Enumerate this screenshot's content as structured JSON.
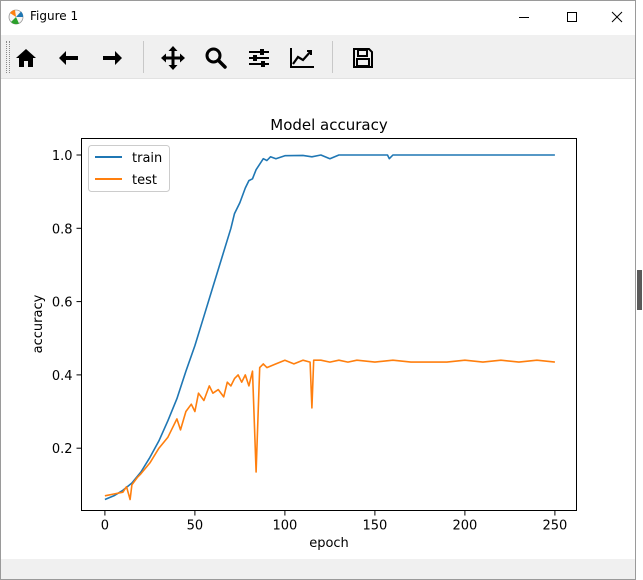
{
  "window": {
    "title": "Figure 1",
    "icons": {
      "app": "matplotlib-logo-icon",
      "minimize": "minimize-icon",
      "maximize": "maximize-icon",
      "close": "close-icon"
    }
  },
  "toolbar": {
    "buttons": [
      {
        "name": "home-button",
        "icon": "home-icon",
        "tooltip": "Reset original view"
      },
      {
        "name": "back-button",
        "icon": "arrow-left-icon",
        "tooltip": "Back to previous view"
      },
      {
        "name": "forward-button",
        "icon": "arrow-right-icon",
        "tooltip": "Forward to next view"
      },
      {
        "name": "pan-button",
        "icon": "move-icon",
        "tooltip": "Pan axes"
      },
      {
        "name": "zoom-button",
        "icon": "search-icon",
        "tooltip": "Zoom to rectangle"
      },
      {
        "name": "configure-subplots-button",
        "icon": "sliders-icon",
        "tooltip": "Configure subplots"
      },
      {
        "name": "edit-axis-button",
        "icon": "line-chart-icon",
        "tooltip": "Edit axis"
      },
      {
        "name": "save-button",
        "icon": "floppy-disk-icon",
        "tooltip": "Save the figure"
      }
    ]
  },
  "colors": {
    "train": "#1f77b4",
    "test": "#ff7f0e",
    "toolbar_bg": "#f0f0f0"
  },
  "chart_data": {
    "type": "line",
    "title": "Model accuracy",
    "xlabel": "epoch",
    "ylabel": "accuracy",
    "xlim": [
      -13,
      262
    ],
    "ylim": [
      0.03,
      1.045
    ],
    "xticks": [
      0,
      50,
      100,
      150,
      200,
      250
    ],
    "yticks": [
      0.2,
      0.4,
      0.6,
      0.8,
      1.0
    ],
    "xtick_labels": [
      "0",
      "50",
      "100",
      "150",
      "200",
      "250"
    ],
    "ytick_labels": [
      "0.2",
      "0.4",
      "0.6",
      "0.8",
      "1.0"
    ],
    "grid": false,
    "legend_position": "upper-left",
    "series": [
      {
        "name": "train",
        "color": "#1f77b4",
        "points": [
          [
            0,
            0.06
          ],
          [
            5,
            0.07
          ],
          [
            10,
            0.085
          ],
          [
            15,
            0.105
          ],
          [
            20,
            0.135
          ],
          [
            25,
            0.175
          ],
          [
            30,
            0.22
          ],
          [
            35,
            0.275
          ],
          [
            40,
            0.335
          ],
          [
            45,
            0.41
          ],
          [
            50,
            0.48
          ],
          [
            55,
            0.56
          ],
          [
            60,
            0.64
          ],
          [
            65,
            0.72
          ],
          [
            70,
            0.8
          ],
          [
            72,
            0.84
          ],
          [
            75,
            0.87
          ],
          [
            78,
            0.91
          ],
          [
            80,
            0.93
          ],
          [
            82,
            0.935
          ],
          [
            84,
            0.96
          ],
          [
            86,
            0.975
          ],
          [
            88,
            0.99
          ],
          [
            90,
            0.985
          ],
          [
            92,
            0.995
          ],
          [
            95,
            0.99
          ],
          [
            100,
            0.998
          ],
          [
            110,
            0.999
          ],
          [
            115,
            0.995
          ],
          [
            120,
            1.0
          ],
          [
            125,
            0.99
          ],
          [
            130,
            1.0
          ],
          [
            140,
            1.0
          ],
          [
            150,
            1.0
          ],
          [
            157,
            1.0
          ],
          [
            158,
            0.99
          ],
          [
            160,
            1.0
          ],
          [
            200,
            1.0
          ],
          [
            250,
            1.0
          ]
        ]
      },
      {
        "name": "test",
        "color": "#ff7f0e",
        "points": [
          [
            0,
            0.07
          ],
          [
            5,
            0.075
          ],
          [
            10,
            0.08
          ],
          [
            12,
            0.095
          ],
          [
            14,
            0.06
          ],
          [
            15,
            0.1
          ],
          [
            18,
            0.12
          ],
          [
            20,
            0.13
          ],
          [
            25,
            0.16
          ],
          [
            30,
            0.2
          ],
          [
            35,
            0.23
          ],
          [
            38,
            0.26
          ],
          [
            40,
            0.28
          ],
          [
            42,
            0.25
          ],
          [
            45,
            0.3
          ],
          [
            48,
            0.32
          ],
          [
            50,
            0.3
          ],
          [
            52,
            0.35
          ],
          [
            55,
            0.33
          ],
          [
            58,
            0.37
          ],
          [
            60,
            0.35
          ],
          [
            63,
            0.36
          ],
          [
            66,
            0.34
          ],
          [
            68,
            0.38
          ],
          [
            70,
            0.37
          ],
          [
            72,
            0.39
          ],
          [
            74,
            0.4
          ],
          [
            76,
            0.38
          ],
          [
            78,
            0.4
          ],
          [
            80,
            0.37
          ],
          [
            82,
            0.41
          ],
          [
            84,
            0.135
          ],
          [
            86,
            0.42
          ],
          [
            88,
            0.43
          ],
          [
            90,
            0.42
          ],
          [
            95,
            0.43
          ],
          [
            100,
            0.44
          ],
          [
            105,
            0.43
          ],
          [
            110,
            0.44
          ],
          [
            114,
            0.435
          ],
          [
            115,
            0.31
          ],
          [
            116,
            0.44
          ],
          [
            120,
            0.44
          ],
          [
            125,
            0.435
          ],
          [
            130,
            0.44
          ],
          [
            135,
            0.435
          ],
          [
            140,
            0.44
          ],
          [
            150,
            0.435
          ],
          [
            160,
            0.44
          ],
          [
            170,
            0.435
          ],
          [
            180,
            0.435
          ],
          [
            190,
            0.435
          ],
          [
            200,
            0.44
          ],
          [
            210,
            0.435
          ],
          [
            220,
            0.44
          ],
          [
            230,
            0.435
          ],
          [
            240,
            0.44
          ],
          [
            250,
            0.435
          ]
        ]
      }
    ]
  }
}
